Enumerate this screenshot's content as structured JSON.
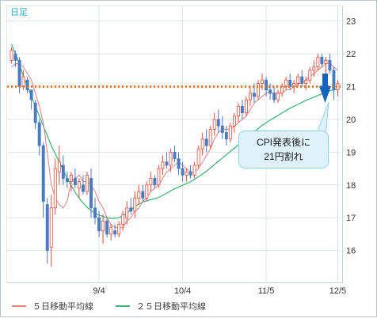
{
  "chart_data": {
    "type": "candlestick",
    "period_label": "日足",
    "x_tick_labels": [
      "9/4",
      "10/4",
      "11/5",
      "12/5"
    ],
    "y_ticks": [
      16,
      17,
      18,
      19,
      20,
      21,
      22,
      23
    ],
    "ylim": [
      15.05,
      23.45
    ],
    "reference_line": {
      "value": 21,
      "color": "#f07820",
      "style": "dotted"
    },
    "annotation": {
      "text_line1": "CPI発表後に",
      "text_line2": "21円割れ",
      "arrow_color": "#1565c0"
    },
    "legend": [
      {
        "label": "５日移動平均線",
        "color": "#e08080"
      },
      {
        "label": "２５日移動平均線",
        "color": "#3cb371"
      }
    ],
    "colors": {
      "up": "#e74c3c",
      "down": "#4a7ac0",
      "ma5": "#e08080",
      "ma25": "#3cb371",
      "grid": "#dde3e8"
    },
    "candles": [
      [
        21.8,
        22.2,
        21.7,
        22.1
      ],
      [
        22.0,
        22.1,
        21.6,
        21.8
      ],
      [
        21.8,
        21.9,
        20.8,
        21.0
      ],
      [
        21.0,
        21.5,
        20.9,
        21.3
      ],
      [
        21.2,
        21.3,
        20.8,
        20.9
      ],
      [
        20.9,
        20.9,
        20.3,
        20.6
      ],
      [
        20.5,
        20.6,
        19.7,
        19.9
      ],
      [
        19.9,
        20.0,
        18.9,
        19.2
      ],
      [
        19.2,
        19.3,
        17.0,
        17.5
      ],
      [
        17.4,
        17.6,
        15.6,
        16.0
      ],
      [
        16.1,
        17.7,
        15.5,
        17.3
      ],
      [
        17.3,
        18.8,
        17.1,
        18.5
      ],
      [
        18.4,
        19.2,
        18.0,
        18.7
      ],
      [
        18.6,
        18.9,
        18.0,
        18.2
      ],
      [
        18.2,
        18.4,
        17.9,
        18.1
      ],
      [
        18.1,
        18.4,
        17.8,
        18.3
      ],
      [
        18.2,
        18.5,
        17.9,
        18.0
      ],
      [
        17.9,
        18.2,
        17.6,
        18.1
      ],
      [
        18.0,
        18.3,
        17.7,
        17.8
      ],
      [
        17.8,
        18.4,
        17.7,
        18.3
      ],
      [
        18.2,
        18.5,
        17.0,
        17.3
      ],
      [
        17.3,
        17.6,
        16.8,
        17.0
      ],
      [
        17.0,
        17.2,
        16.4,
        16.6
      ],
      [
        16.6,
        17.1,
        16.2,
        16.9
      ],
      [
        16.9,
        17.0,
        16.4,
        16.5
      ],
      [
        16.5,
        16.8,
        16.3,
        16.7
      ],
      [
        16.6,
        16.8,
        16.4,
        16.5
      ],
      [
        16.5,
        16.9,
        16.4,
        16.8
      ],
      [
        16.8,
        17.2,
        16.6,
        17.1
      ],
      [
        17.0,
        17.5,
        16.8,
        17.3
      ],
      [
        17.3,
        17.6,
        17.1,
        17.2
      ],
      [
        17.2,
        17.8,
        17.0,
        17.6
      ],
      [
        17.6,
        18.0,
        17.4,
        17.8
      ],
      [
        17.8,
        18.0,
        17.5,
        17.6
      ],
      [
        17.6,
        18.1,
        17.5,
        18.0
      ],
      [
        18.0,
        18.4,
        17.8,
        18.2
      ],
      [
        18.2,
        18.3,
        17.9,
        18.0
      ],
      [
        18.0,
        18.6,
        17.9,
        18.5
      ],
      [
        18.5,
        18.9,
        18.3,
        18.7
      ],
      [
        18.7,
        19.0,
        18.5,
        18.6
      ],
      [
        18.6,
        19.1,
        18.4,
        19.0
      ],
      [
        19.0,
        19.2,
        18.7,
        18.8
      ],
      [
        18.8,
        19.0,
        18.3,
        18.5
      ],
      [
        18.5,
        18.7,
        18.1,
        18.3
      ],
      [
        18.3,
        18.5,
        18.1,
        18.4
      ],
      [
        18.4,
        18.6,
        18.2,
        18.3
      ],
      [
        18.3,
        18.7,
        18.2,
        18.6
      ],
      [
        18.6,
        19.2,
        18.5,
        19.1
      ],
      [
        19.1,
        19.6,
        18.9,
        19.4
      ],
      [
        19.4,
        19.7,
        19.0,
        19.2
      ],
      [
        19.2,
        19.8,
        19.1,
        19.7
      ],
      [
        19.7,
        20.2,
        19.5,
        20.0
      ],
      [
        20.0,
        20.3,
        19.6,
        19.8
      ],
      [
        19.8,
        20.1,
        19.4,
        19.6
      ],
      [
        19.6,
        19.8,
        19.2,
        19.4
      ],
      [
        19.4,
        19.9,
        19.3,
        19.8
      ],
      [
        19.8,
        20.2,
        19.6,
        20.1
      ],
      [
        20.1,
        20.5,
        19.9,
        20.4
      ],
      [
        20.4,
        20.6,
        20.0,
        20.2
      ],
      [
        20.2,
        20.7,
        20.1,
        20.6
      ],
      [
        20.6,
        21.0,
        20.4,
        20.8
      ],
      [
        20.8,
        21.1,
        20.5,
        20.7
      ],
      [
        20.7,
        21.2,
        20.6,
        21.1
      ],
      [
        21.1,
        21.4,
        20.9,
        21.2
      ],
      [
        21.2,
        21.3,
        20.7,
        20.9
      ],
      [
        20.9,
        21.1,
        20.6,
        20.8
      ],
      [
        20.8,
        21.0,
        20.5,
        20.6
      ],
      [
        20.6,
        20.9,
        20.5,
        20.8
      ],
      [
        20.8,
        21.1,
        20.7,
        21.0
      ],
      [
        21.0,
        21.3,
        20.9,
        21.2
      ],
      [
        21.2,
        21.4,
        20.9,
        21.0
      ],
      [
        21.0,
        21.2,
        20.8,
        21.1
      ],
      [
        21.1,
        21.4,
        21.0,
        21.3
      ],
      [
        21.3,
        21.5,
        21.0,
        21.1
      ],
      [
        21.1,
        21.3,
        20.9,
        21.2
      ],
      [
        21.2,
        21.6,
        21.1,
        21.5
      ],
      [
        21.5,
        21.8,
        21.3,
        21.6
      ],
      [
        21.6,
        22.0,
        21.5,
        21.9
      ],
      [
        21.9,
        22.0,
        21.6,
        21.7
      ],
      [
        21.7,
        21.9,
        21.4,
        21.8
      ],
      [
        21.8,
        22.0,
        21.4,
        21.5
      ],
      [
        21.5,
        21.6,
        20.6,
        20.9
      ],
      [
        20.9,
        21.2,
        20.7,
        21.1
      ]
    ],
    "ma5": [
      21.6,
      21.7,
      21.7,
      21.6,
      21.4,
      21.2,
      20.8,
      20.4,
      19.9,
      19.0,
      18.0,
      17.6,
      17.4,
      17.3,
      17.5,
      18.1,
      18.2,
      18.3,
      18.1,
      18.1,
      18.0,
      17.8,
      17.5,
      17.3,
      17.0,
      16.8,
      16.7,
      16.7,
      16.7,
      16.9,
      17.0,
      17.2,
      17.3,
      17.5,
      17.6,
      17.8,
      17.9,
      18.0,
      18.2,
      18.4,
      18.5,
      18.6,
      18.7,
      18.6,
      18.5,
      18.4,
      18.4,
      18.5,
      18.7,
      18.9,
      19.1,
      19.4,
      19.6,
      19.7,
      19.7,
      19.7,
      19.8,
      19.9,
      20.0,
      20.1,
      20.3,
      20.5,
      20.6,
      20.7,
      20.8,
      20.8,
      20.8,
      20.8,
      20.8,
      20.9,
      20.9,
      21.0,
      21.1,
      21.1,
      21.2,
      21.3,
      21.4,
      21.5,
      21.6,
      21.7,
      21.7,
      21.6,
      21.5
    ],
    "ma25": [
      22.3,
      22.0,
      21.7,
      21.3,
      21.0,
      20.7,
      20.4,
      20.1,
      19.8,
      19.5,
      19.2,
      18.95,
      18.7,
      18.45,
      18.2,
      17.98,
      17.78,
      17.6,
      17.45,
      17.32,
      17.22,
      17.14,
      17.08,
      17.04,
      17.0,
      16.98,
      16.98,
      17.0,
      17.06,
      17.14,
      17.24,
      17.34,
      17.42,
      17.48,
      17.52,
      17.55,
      17.58,
      17.62,
      17.68,
      17.75,
      17.82,
      17.88,
      17.94,
      17.99,
      18.04,
      18.1,
      18.17,
      18.25,
      18.33,
      18.42,
      18.52,
      18.62,
      18.72,
      18.82,
      18.92,
      19.02,
      19.12,
      19.22,
      19.32,
      19.42,
      19.52,
      19.62,
      19.72,
      19.82,
      19.9,
      19.98,
      20.05,
      20.12,
      20.2,
      20.27,
      20.34,
      20.4,
      20.46,
      20.52,
      20.58,
      20.63,
      20.68,
      20.73,
      20.78,
      20.83,
      20.87,
      20.9,
      20.93
    ]
  }
}
